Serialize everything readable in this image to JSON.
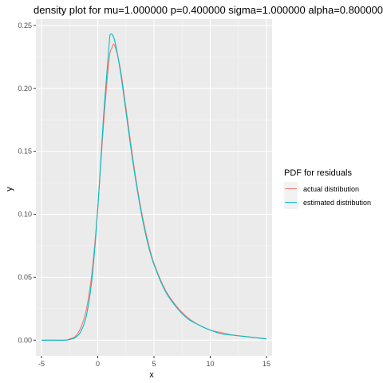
{
  "chart_data": {
    "type": "line",
    "title": "density plot for mu=1.000000 p=0.400000 sigma=1.000000 alpha=0.800000",
    "xlabel": "x",
    "ylabel": "y",
    "xlim": [
      -5.5,
      15.5
    ],
    "ylim": [
      -0.0125,
      0.255
    ],
    "x_ticks": [
      -5,
      0,
      5,
      10,
      15
    ],
    "x_tick_labels": [
      "-5",
      "0",
      "5",
      "10",
      "15"
    ],
    "y_ticks": [
      0.0,
      0.05,
      0.1,
      0.15,
      0.2,
      0.25
    ],
    "y_tick_labels": [
      "0.00",
      "0.05",
      "0.10",
      "0.15",
      "0.20",
      "0.25"
    ],
    "legend": {
      "title": "PDF for residuals",
      "position": "right"
    },
    "series": [
      {
        "name": "actual distribution",
        "color": "#F8766D",
        "x": [
          -5,
          -3,
          -2.5,
          -2,
          -1.5,
          -1,
          -0.5,
          0,
          0.5,
          1,
          1.25,
          1.5,
          2,
          2.5,
          3,
          3.5,
          4,
          4.5,
          5,
          6,
          7,
          8,
          9,
          10,
          11,
          12,
          13,
          14,
          15
        ],
        "y": [
          0.0,
          0.0,
          0.001,
          0.003,
          0.01,
          0.025,
          0.055,
          0.105,
          0.17,
          0.222,
          0.232,
          0.234,
          0.216,
          0.185,
          0.152,
          0.122,
          0.097,
          0.077,
          0.061,
          0.04,
          0.027,
          0.018,
          0.012,
          0.008,
          0.006,
          0.004,
          0.003,
          0.002,
          0.001
        ]
      },
      {
        "name": "estimated distribution",
        "color": "#00BFC4",
        "x": [
          -5,
          -3,
          -2.5,
          -2,
          -1.5,
          -1,
          -0.5,
          0,
          0.5,
          1,
          1.15,
          1.5,
          2,
          2.5,
          3,
          3.5,
          4,
          4.5,
          5,
          6,
          7,
          8,
          9,
          10,
          11,
          12,
          13,
          14,
          15
        ],
        "y": [
          0.0,
          0.0,
          0.0005,
          0.002,
          0.007,
          0.02,
          0.05,
          0.104,
          0.176,
          0.234,
          0.243,
          0.238,
          0.214,
          0.182,
          0.149,
          0.12,
          0.095,
          0.075,
          0.06,
          0.039,
          0.026,
          0.017,
          0.012,
          0.008,
          0.005,
          0.004,
          0.003,
          0.002,
          0.001
        ]
      }
    ]
  }
}
